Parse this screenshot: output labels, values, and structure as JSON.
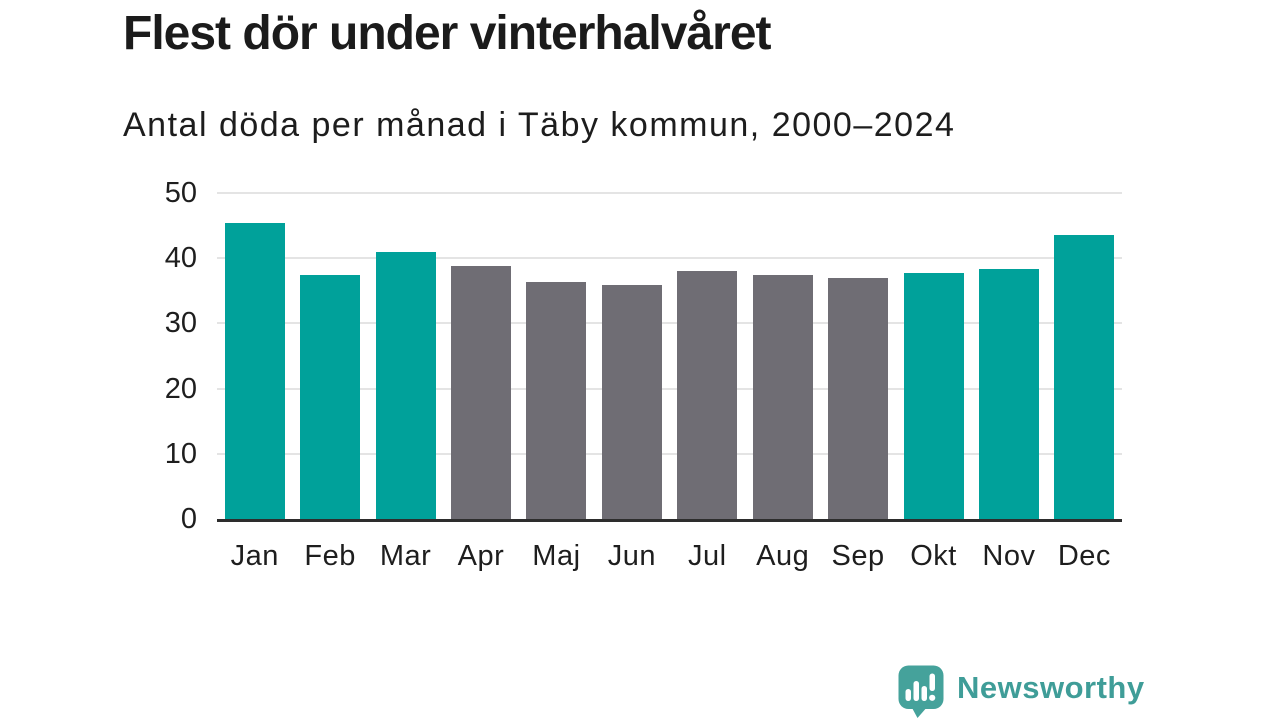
{
  "header": {
    "title": "Flest dör under vinterhalvåret",
    "subtitle": "Antal döda per månad i Täby kommun, 2000–2024"
  },
  "chart_data": {
    "type": "bar",
    "title": "Flest dör under vinterhalvåret",
    "subtitle": "Antal döda per månad i Täby kommun, 2000–2024",
    "categories": [
      "Jan",
      "Feb",
      "Mar",
      "Apr",
      "Maj",
      "Jun",
      "Jul",
      "Aug",
      "Sep",
      "Okt",
      "Nov",
      "Dec"
    ],
    "values": [
      45.4,
      37.4,
      40.9,
      38.8,
      36.3,
      35.9,
      38.1,
      37.4,
      36.9,
      37.8,
      38.3,
      43.5
    ],
    "bar_colors": [
      "#00a19a",
      "#00a19a",
      "#00a19a",
      "#6f6d74",
      "#6f6d74",
      "#6f6d74",
      "#6f6d74",
      "#6f6d74",
      "#6f6d74",
      "#00a19a",
      "#00a19a",
      "#00a19a"
    ],
    "xlabel": "",
    "ylabel": "",
    "ylim": [
      0,
      50
    ],
    "yticks": [
      0,
      10,
      20,
      30,
      40,
      50
    ],
    "grid": "horizontal",
    "legend": "none"
  },
  "colors": {
    "highlight_teal": "#00a19a",
    "neutral_gray": "#6f6d74",
    "gridline": "#e4e4e4",
    "axis_line": "#2d2d2d",
    "text": "#1b1b1b",
    "brand_teal": "#3f9d98",
    "logo_fill": "#45a29b"
  },
  "footer": {
    "brand": "Newsworthy",
    "logo_icon": "speech-bubble-bar-chart-icon"
  }
}
